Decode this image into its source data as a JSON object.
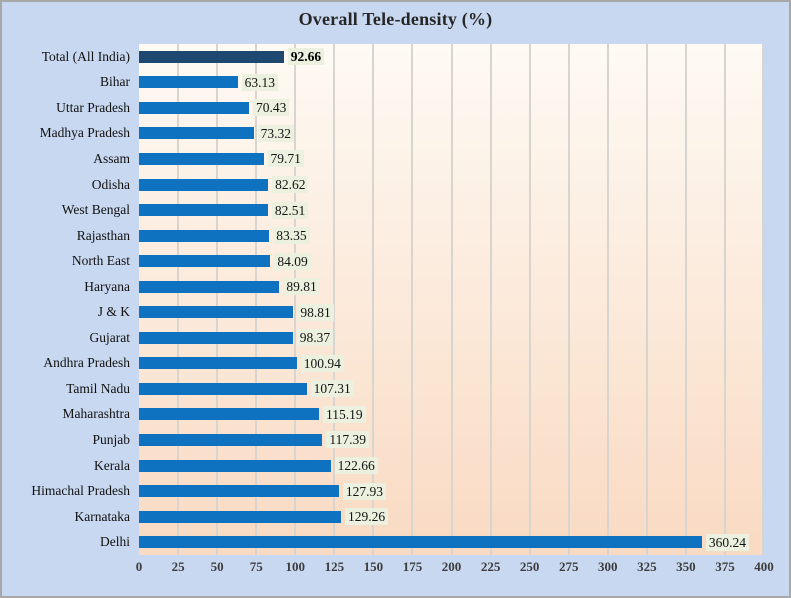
{
  "chart_data": {
    "type": "bar",
    "orientation": "horizontal",
    "title": "Overall Tele-density (%)",
    "xlabel": "",
    "ylabel": "",
    "categories": [
      "Total (All India)",
      "Bihar",
      "Uttar Pradesh",
      "Madhya Pradesh",
      "Assam",
      "Odisha",
      "West Bengal",
      "Rajasthan",
      "North East",
      "Haryana",
      "J & K",
      "Gujarat",
      "Andhra Pradesh",
      "Tamil Nadu",
      "Maharashtra",
      "Punjab",
      "Kerala",
      "Himachal Pradesh",
      "Karnataka",
      "Delhi"
    ],
    "values": [
      92.66,
      63.13,
      70.43,
      73.32,
      79.71,
      82.62,
      82.51,
      83.35,
      84.09,
      89.81,
      98.81,
      98.37,
      100.94,
      107.31,
      115.19,
      117.39,
      122.66,
      127.93,
      129.26,
      360.24
    ],
    "xlim": [
      0,
      400
    ],
    "xticks": [
      0,
      25,
      50,
      75,
      100,
      125,
      150,
      175,
      200,
      225,
      250,
      275,
      300,
      325,
      350,
      375,
      400
    ],
    "grid": true,
    "legend": "none",
    "highlight_index": 0,
    "colors": {
      "background": "#c8d8f0",
      "frame_border": "#a8a8a8",
      "bar": "#0f72c1",
      "highlight_bar": "#1f4870",
      "value_label_bg": "#ebf1de",
      "plot_bg_top": "#fefaf4",
      "plot_bg_bottom": "#f9dac2",
      "gridline": "#d8d5d0",
      "title_color": "#262626",
      "axis_text": "#3c3c3c"
    }
  }
}
